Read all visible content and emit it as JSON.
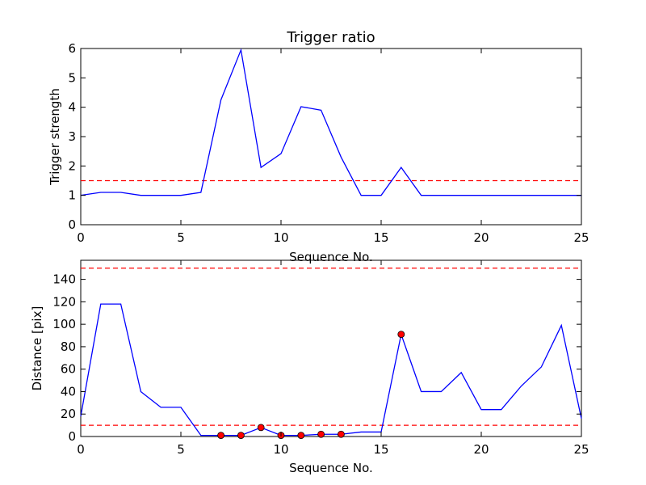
{
  "chart_data": [
    {
      "type": "line",
      "title": "Trigger ratio",
      "xlabel": "Sequence No.",
      "ylabel": "Trigger strength",
      "xlim": [
        0,
        25
      ],
      "ylim": [
        0,
        6
      ],
      "xticks": [
        "0",
        "5",
        "10",
        "15",
        "20",
        "25"
      ],
      "yticks": [
        "0",
        "1",
        "2",
        "3",
        "4",
        "5",
        "6"
      ],
      "grid": false,
      "series": [
        {
          "style": "line",
          "color": "#0000ff",
          "x": [
            0,
            1,
            2,
            3,
            4,
            5,
            6,
            7,
            8,
            9,
            10,
            11,
            12,
            13,
            14,
            15,
            16,
            17,
            18,
            19,
            20,
            21,
            22,
            23,
            24,
            25
          ],
          "y": [
            1.0,
            1.1,
            1.1,
            1.0,
            1.0,
            1.0,
            1.1,
            4.25,
            5.95,
            1.95,
            2.42,
            4.02,
            3.9,
            2.3,
            1.0,
            1.0,
            1.95,
            1.0,
            1.0,
            1.0,
            1.0,
            1.0,
            1.0,
            1.0,
            1.0,
            1.0
          ]
        }
      ],
      "hlines": [
        {
          "y": 1.5,
          "color": "#ff0000",
          "style": "dashed"
        }
      ]
    },
    {
      "type": "line",
      "title": "",
      "xlabel": "Sequence No.",
      "ylabel": "Distance [pix]",
      "xlim": [
        0,
        25
      ],
      "ylim": [
        0,
        157
      ],
      "xticks": [
        "0",
        "5",
        "10",
        "15",
        "20",
        "25"
      ],
      "yticks": [
        "0",
        "20",
        "40",
        "60",
        "80",
        "100",
        "120",
        "140"
      ],
      "grid": false,
      "series": [
        {
          "style": "line",
          "color": "#0000ff",
          "x": [
            0,
            1,
            2,
            3,
            4,
            5,
            6,
            7,
            8,
            9,
            10,
            11,
            12,
            13,
            14,
            15,
            16,
            17,
            18,
            19,
            20,
            21,
            22,
            23,
            24,
            25
          ],
          "y": [
            18,
            118,
            118,
            40,
            26,
            26,
            1,
            1,
            1,
            8,
            1,
            1,
            2,
            2,
            4,
            4,
            91,
            40,
            40,
            57,
            24,
            24,
            45,
            62,
            99,
            16
          ]
        },
        {
          "style": "markers",
          "color": "#ff0000",
          "x": [
            7,
            8,
            9,
            10,
            11,
            12,
            13,
            16
          ],
          "y": [
            1,
            1,
            8,
            1,
            1,
            2,
            2,
            91
          ]
        }
      ],
      "hlines": [
        {
          "y": 150,
          "color": "#ff0000",
          "style": "dashed"
        },
        {
          "y": 10,
          "color": "#ff0000",
          "style": "dashed"
        }
      ]
    }
  ]
}
